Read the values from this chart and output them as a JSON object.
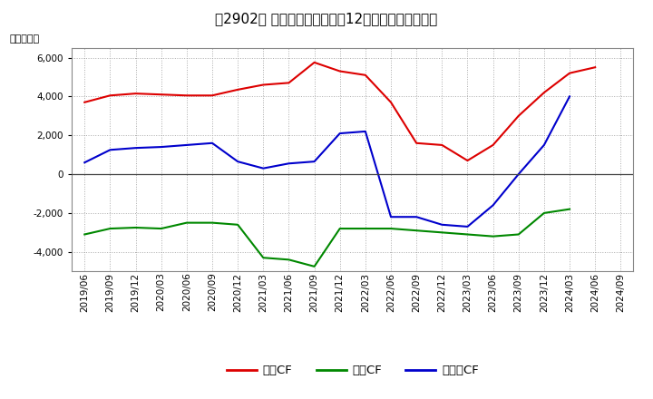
{
  "title": "　2902、 キャッシュフローの12か月移動合計の推移",
  "ylabel": "（百万円）",
  "xlabels": [
    "2019/06",
    "2019/09",
    "2019/12",
    "2020/03",
    "2020/06",
    "2020/09",
    "2020/12",
    "2021/03",
    "2021/06",
    "2021/09",
    "2021/12",
    "2022/03",
    "2022/06",
    "2022/09",
    "2022/12",
    "2023/03",
    "2023/06",
    "2023/09",
    "2023/12",
    "2024/03",
    "2024/06",
    "2024/09"
  ],
  "eigyo_cf": [
    3700,
    4050,
    4150,
    4100,
    4050,
    4050,
    4350,
    4600,
    4700,
    5750,
    5300,
    5100,
    3700,
    1600,
    1500,
    700,
    1500,
    3000,
    4200,
    5200,
    5500,
    null
  ],
  "toshi_cf": [
    -3100,
    -2800,
    -2750,
    -2800,
    -2500,
    -2500,
    -2600,
    -4300,
    -4400,
    -4750,
    -2800,
    -2800,
    -2800,
    -2900,
    -3000,
    -3100,
    -3200,
    -3100,
    -2000,
    -1800,
    null,
    null
  ],
  "free_cf": [
    600,
    1250,
    1350,
    1400,
    1500,
    1600,
    650,
    300,
    550,
    650,
    2100,
    2200,
    -2200,
    -2200,
    -2600,
    -2700,
    -1600,
    0,
    1500,
    4000,
    null,
    null
  ],
  "ylim": [
    -5000,
    6500
  ],
  "yticks": [
    -4000,
    -2000,
    0,
    2000,
    4000,
    6000
  ],
  "line_colors": {
    "eigyo": "#dd0000",
    "toshi": "#008800",
    "free": "#0000cc"
  },
  "legend_labels": [
    "営業CF",
    "投資CF",
    "フリーCF"
  ],
  "bg_color": "#ffffff",
  "grid_color": "#aaaaaa",
  "title_fontsize": 11,
  "label_fontsize": 8,
  "tick_fontsize": 7.5
}
